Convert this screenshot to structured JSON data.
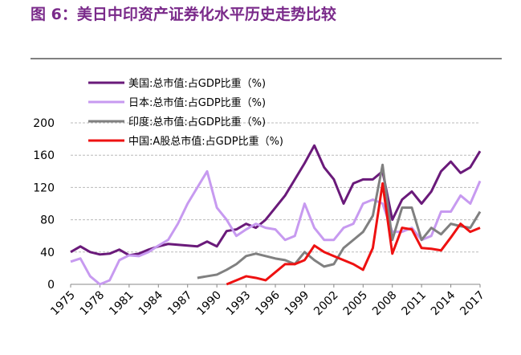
{
  "chart_data": {
    "type": "line",
    "title": "图 6：美日中印资产证券化水平历史走势比较",
    "x": [
      1975,
      1976,
      1977,
      1978,
      1979,
      1980,
      1981,
      1982,
      1983,
      1984,
      1985,
      1986,
      1987,
      1988,
      1989,
      1990,
      1991,
      1992,
      1993,
      1994,
      1995,
      1996,
      1997,
      1998,
      1999,
      2000,
      2001,
      2002,
      2003,
      2004,
      2005,
      2006,
      2007,
      2008,
      2009,
      2010,
      2011,
      2012,
      2013,
      2014,
      2015,
      2016,
      2017
    ],
    "xlim": [
      1975,
      2017
    ],
    "xticks": [
      1975,
      1978,
      1981,
      1984,
      1987,
      1990,
      1993,
      1996,
      1999,
      2002,
      2005,
      2008,
      2011,
      2014,
      2017
    ],
    "ylim": [
      0,
      200
    ],
    "yticks": [
      0,
      40,
      80,
      120,
      160,
      200
    ],
    "grid": true,
    "series": [
      {
        "name": "美国:总市值:占GDP比重（%)",
        "color": "#6a1a7a",
        "values": [
          40,
          47,
          40,
          37,
          38,
          43,
          36,
          38,
          43,
          47,
          50,
          49,
          48,
          47,
          53,
          47,
          66,
          68,
          75,
          70,
          80,
          95,
          110,
          130,
          150,
          172,
          145,
          130,
          100,
          125,
          130,
          130,
          140,
          80,
          105,
          115,
          100,
          115,
          140,
          152,
          138,
          145,
          165
        ]
      },
      {
        "name": "日本:总市值:占GDP比重（%)",
        "color": "#c79af0",
        "values": [
          28,
          32,
          10,
          0,
          5,
          30,
          36,
          35,
          40,
          48,
          55,
          75,
          100,
          120,
          140,
          95,
          80,
          60,
          68,
          75,
          70,
          68,
          55,
          60,
          100,
          70,
          55,
          55,
          70,
          75,
          100,
          105,
          100,
          65,
          65,
          70,
          55,
          60,
          90,
          90,
          110,
          100,
          128
        ]
      },
      {
        "name": "印度:总市值:占GDP比重（%)",
        "color": "#808080",
        "values": [
          null,
          null,
          null,
          null,
          null,
          null,
          null,
          null,
          null,
          null,
          null,
          null,
          null,
          8,
          10,
          12,
          18,
          25,
          35,
          38,
          35,
          32,
          30,
          25,
          40,
          30,
          22,
          25,
          45,
          55,
          65,
          85,
          148,
          55,
          95,
          95,
          55,
          70,
          62,
          75,
          72,
          70,
          90
        ]
      },
      {
        "name": "中国:A股总市值:占GDP比重（%)",
        "color": "#ee1111",
        "values": [
          null,
          null,
          null,
          null,
          null,
          null,
          null,
          null,
          null,
          null,
          null,
          null,
          null,
          null,
          null,
          null,
          0,
          5,
          10,
          8,
          5,
          15,
          25,
          25,
          30,
          48,
          40,
          35,
          30,
          25,
          18,
          45,
          125,
          38,
          70,
          68,
          45,
          44,
          42,
          58,
          75,
          65,
          70
        ]
      }
    ]
  }
}
